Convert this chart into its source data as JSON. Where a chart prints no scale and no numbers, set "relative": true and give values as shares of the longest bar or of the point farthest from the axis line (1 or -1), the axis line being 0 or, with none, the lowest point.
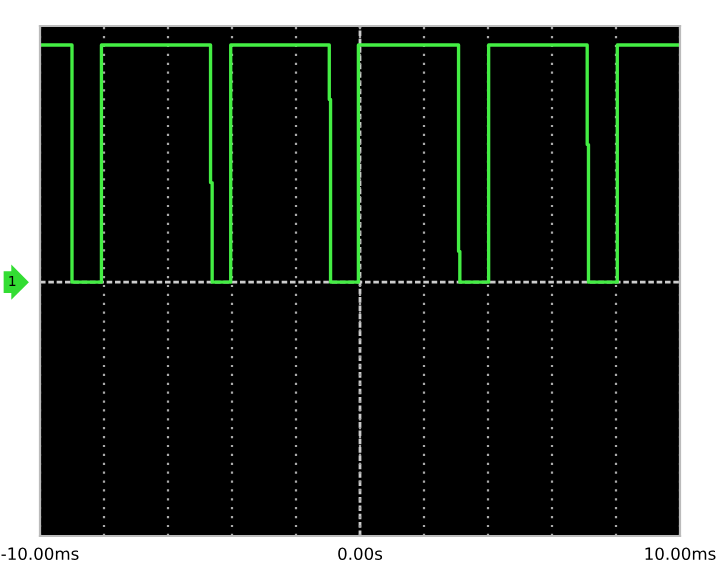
{
  "chart_data": {
    "type": "line",
    "relative": true,
    "x": [
      -10,
      -9.0,
      -9.0,
      -8.08,
      -8.08,
      -4.67,
      -4.67,
      -4.62,
      -4.62,
      -4.04,
      -4.04,
      -0.96,
      -0.96,
      -0.92,
      -0.92,
      -0.05,
      -0.05,
      3.08,
      3.08,
      3.12,
      3.12,
      4.02,
      4.02,
      7.1,
      7.1,
      7.14,
      7.14,
      8.04,
      8.04,
      10
    ],
    "series": [
      {
        "color": "#44ee44",
        "values": [
          1,
          1,
          0,
          0,
          1,
          1,
          0.42,
          0.42,
          0,
          0,
          1,
          1,
          0.77,
          0.77,
          0,
          0,
          1,
          1,
          0.13,
          0.13,
          0,
          0,
          1,
          1,
          0.58,
          0.58,
          0,
          0,
          1,
          1
        ]
      }
    ],
    "xlim": [
      -10,
      10
    ],
    "xticks": [
      {
        "value": -10,
        "label": "-10.00ms"
      },
      {
        "value": -8,
        "label": null
      },
      {
        "value": -6,
        "label": null
      },
      {
        "value": -4,
        "label": null
      },
      {
        "value": -2,
        "label": null
      },
      {
        "value": 0,
        "label": "0.00s"
      },
      {
        "value": 2,
        "label": null
      },
      {
        "value": 4,
        "label": null
      },
      {
        "value": 6,
        "label": null
      },
      {
        "value": 8,
        "label": null
      },
      {
        "value": 10,
        "label": "10.00ms"
      }
    ],
    "grid": "x",
    "marker": "none",
    "line_style": "solid",
    "tick_labels": "x",
    "ref_lines": [
      {
        "axis": "x",
        "value": 0,
        "color": "#cccccc",
        "line_style": "dashed"
      }
    ],
    "annotations": [
      "1"
    ]
  }
}
